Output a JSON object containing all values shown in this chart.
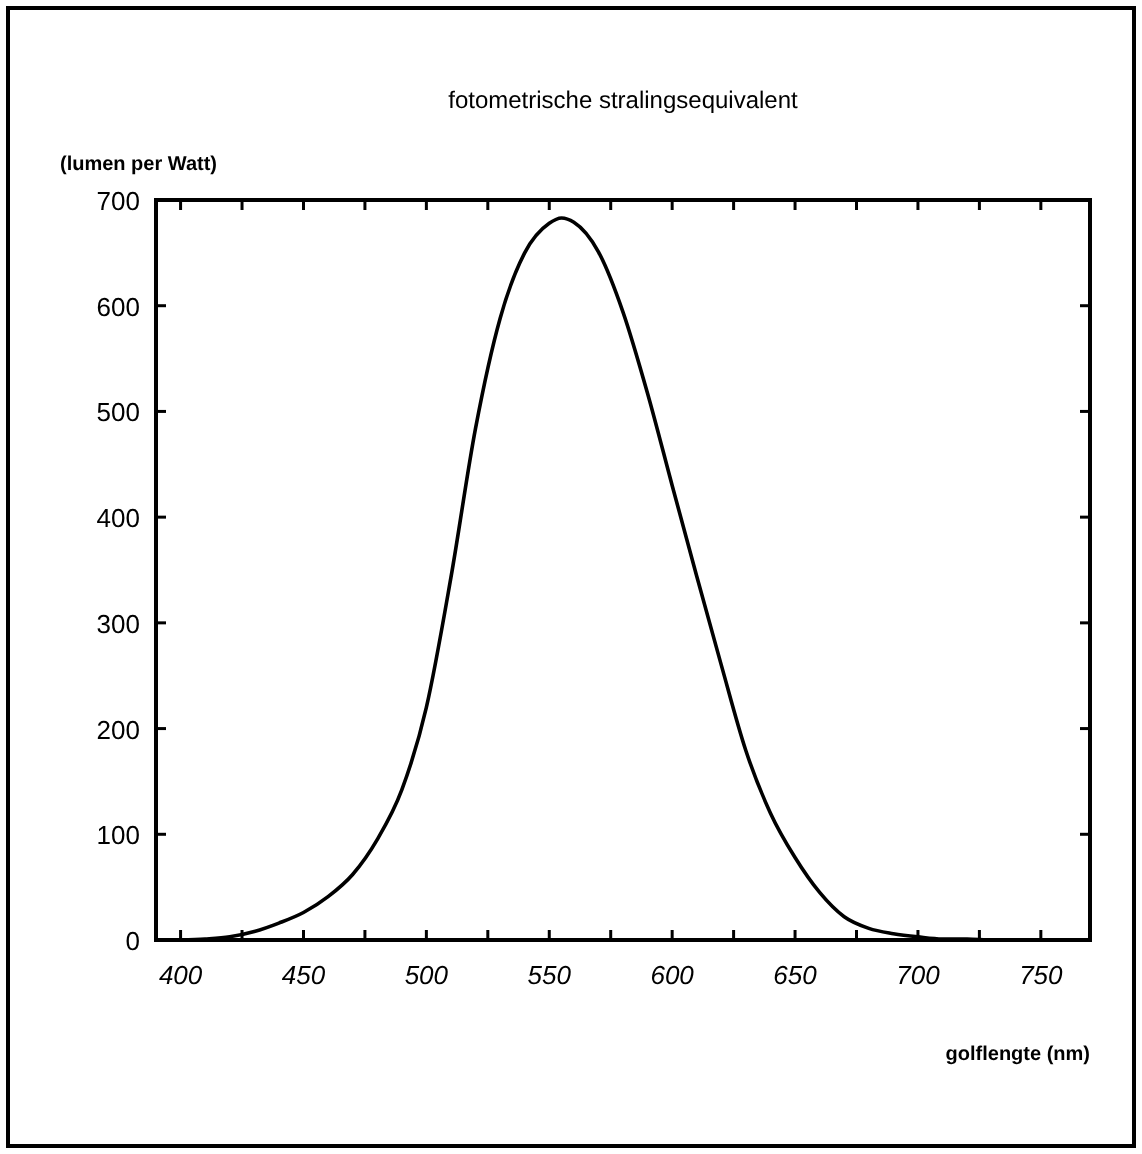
{
  "chart_data": {
    "type": "line",
    "title": "fotometrische stralingsequivalent",
    "ylabel": "(lumen per Watt)",
    "xlabel": "golflengte (nm)",
    "x": [
      400,
      410,
      420,
      430,
      440,
      450,
      460,
      470,
      480,
      490,
      500,
      510,
      520,
      530,
      540,
      550,
      555,
      560,
      570,
      580,
      590,
      600,
      610,
      620,
      630,
      640,
      650,
      660,
      670,
      680,
      690,
      700,
      710,
      720,
      730,
      740,
      750
    ],
    "series": [
      {
        "color": "#000000",
        "values": [
          0,
          1,
          3,
          8,
          16,
          26,
          41,
          62,
          95,
          142,
          220,
          343,
          484,
          588,
          650,
          678,
          683,
          679,
          651,
          594,
          517,
          430,
          344,
          260,
          179,
          120,
          78,
          45,
          22,
          11,
          6,
          3,
          1,
          1,
          0,
          0,
          0
        ]
      }
    ],
    "xlim": [
      390,
      770
    ],
    "ylim": [
      0,
      700
    ],
    "xticks": [
      400,
      450,
      500,
      550,
      600,
      650,
      700,
      750
    ],
    "yticks": [
      0,
      100,
      200,
      300,
      400,
      500,
      600,
      700
    ],
    "marker": "none",
    "line_style": "solid"
  }
}
